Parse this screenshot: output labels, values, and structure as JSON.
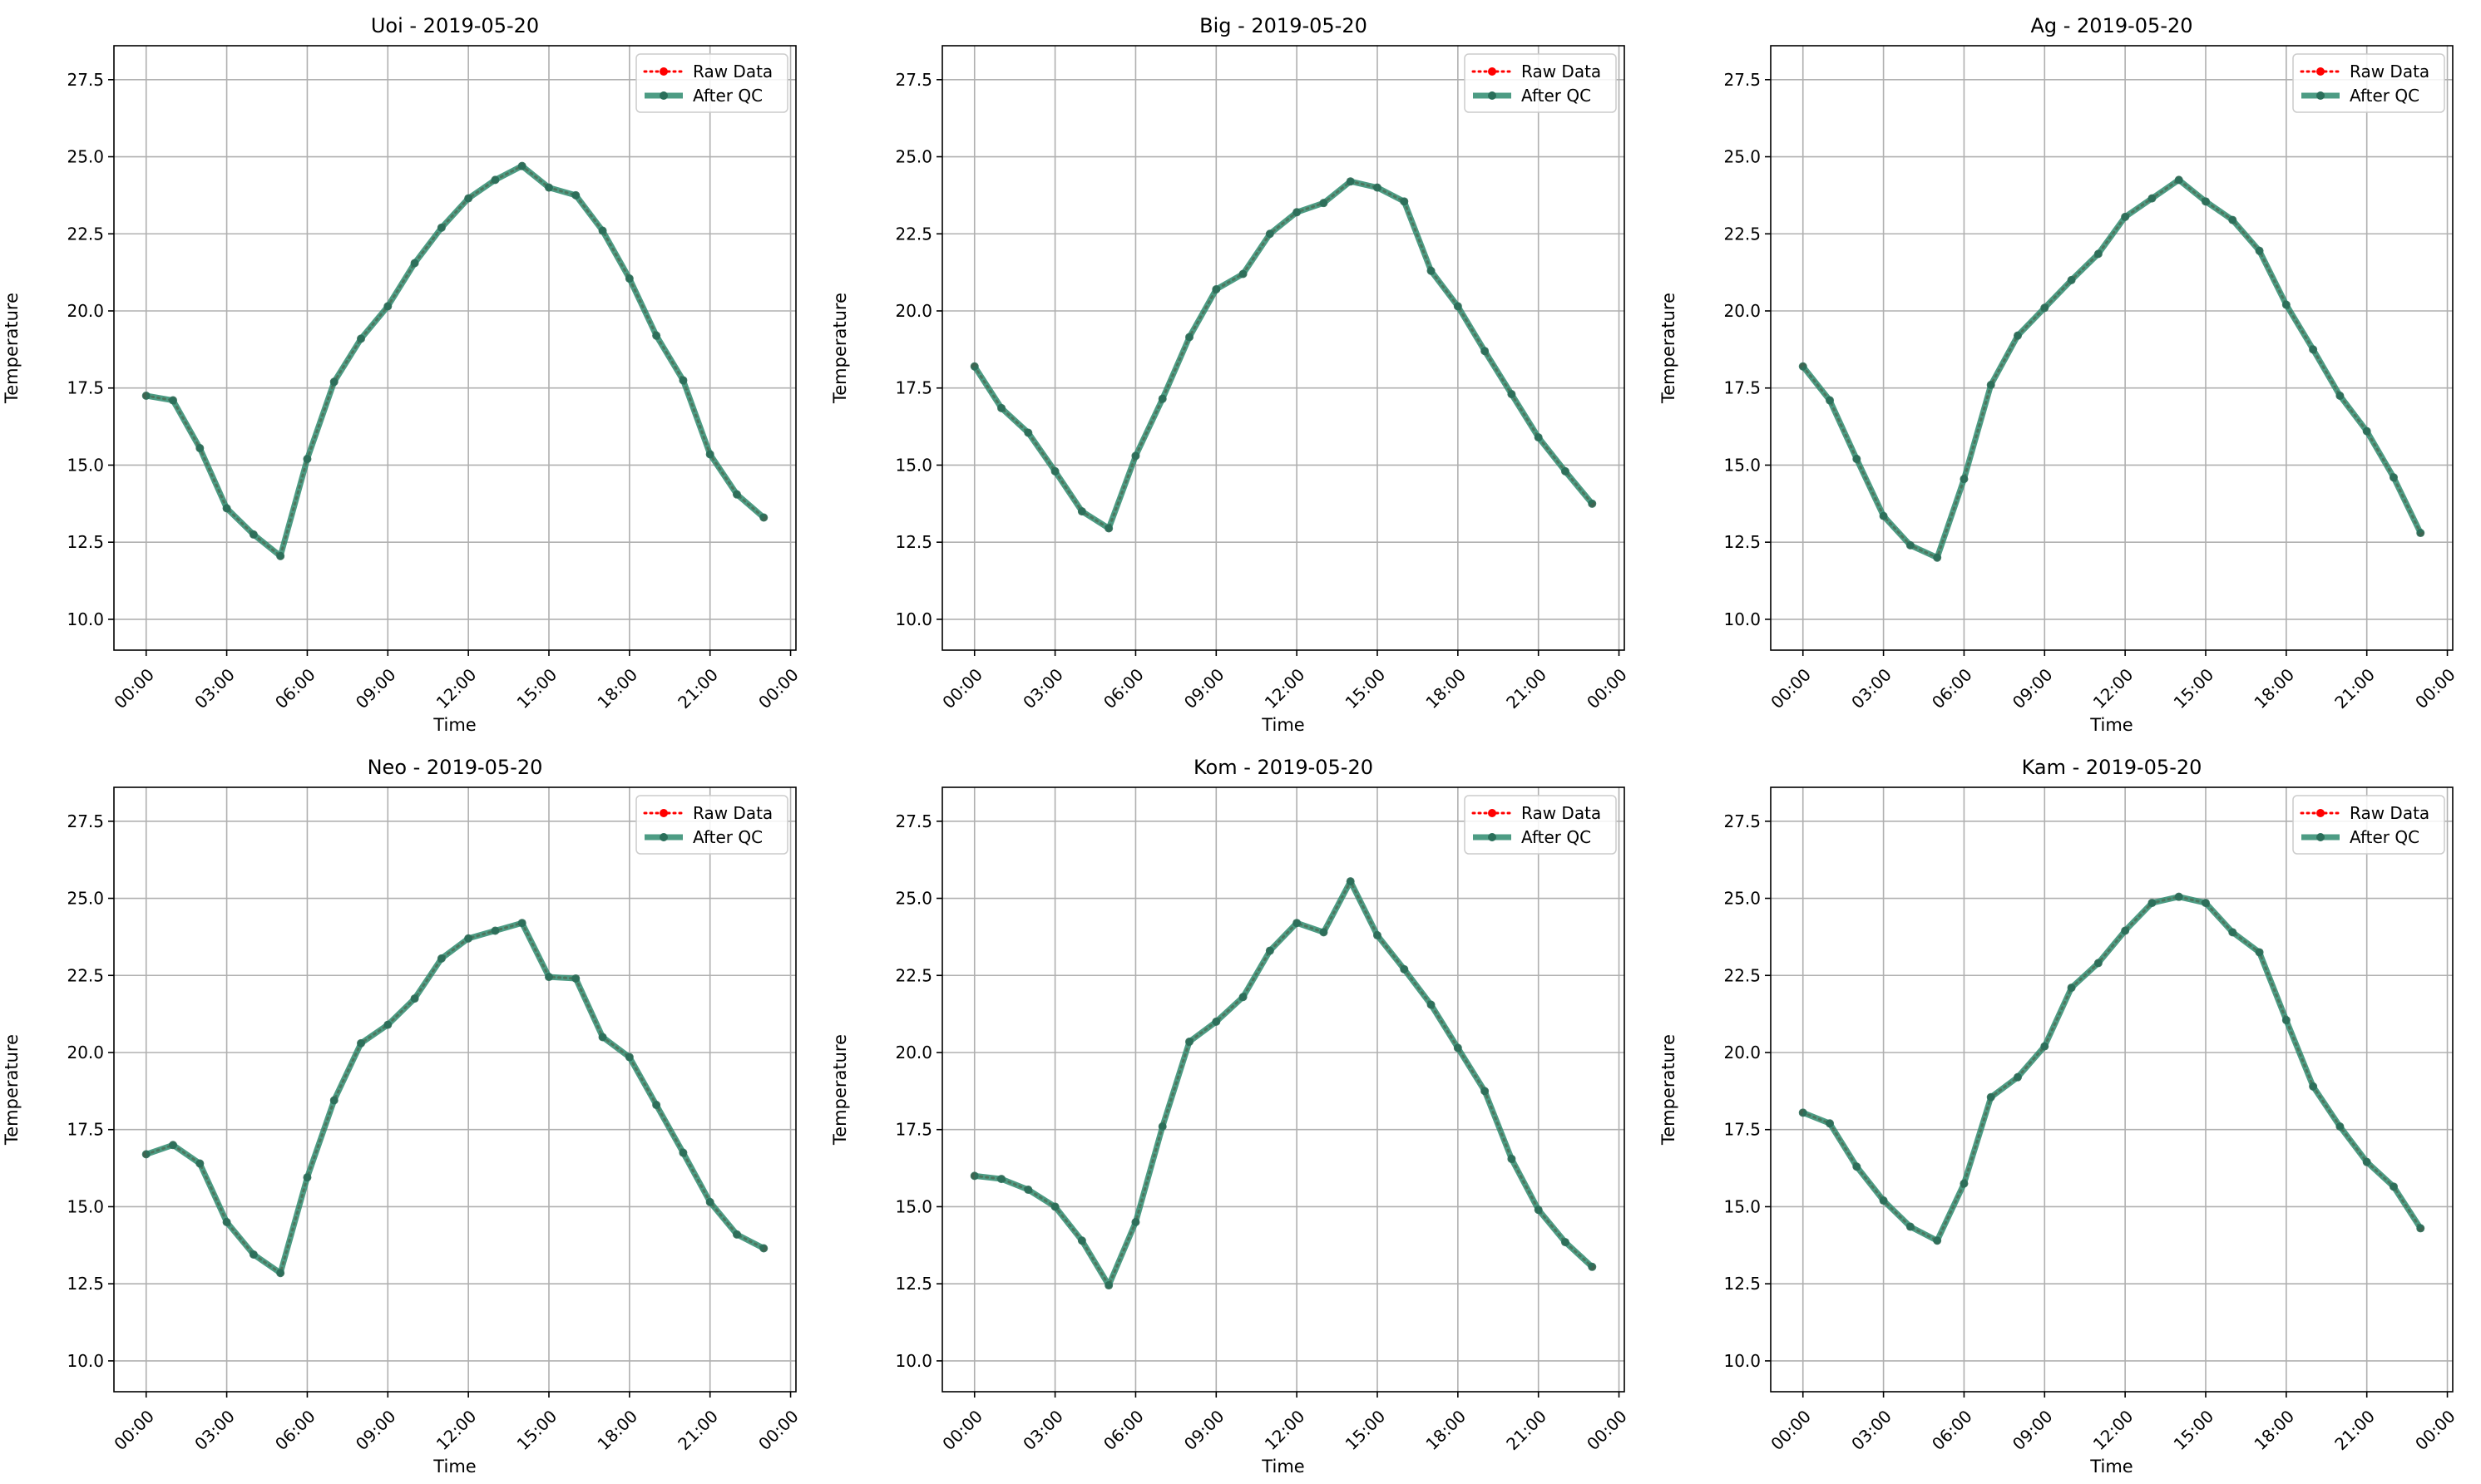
{
  "chart_data": [
    {
      "type": "line",
      "title": "Uoi - 2019-05-20",
      "xlabel": "Time",
      "ylabel": "Temperature",
      "x": [
        "00:00",
        "01:00",
        "02:00",
        "03:00",
        "04:00",
        "05:00",
        "06:00",
        "07:00",
        "08:00",
        "09:00",
        "10:00",
        "11:00",
        "12:00",
        "13:00",
        "14:00",
        "15:00",
        "16:00",
        "17:00",
        "18:00",
        "19:00",
        "20:00",
        "21:00",
        "22:00",
        "23:00"
      ],
      "xticks": [
        "00:00",
        "03:00",
        "06:00",
        "09:00",
        "12:00",
        "15:00",
        "18:00",
        "21:00",
        "00:00"
      ],
      "xlim_hours": [
        -1.2,
        24.2
      ],
      "yticks": [
        "10.0",
        "12.5",
        "15.0",
        "17.5",
        "20.0",
        "22.5",
        "25.0",
        "27.5"
      ],
      "ylim": [
        9.0,
        28.6
      ],
      "grid": true,
      "legend_position": "top-right",
      "series": [
        {
          "name": "Raw Data",
          "color": "#ff0000",
          "style": "dotted",
          "values": [
            17.25,
            17.1,
            15.55,
            13.6,
            12.75,
            12.05,
            15.2,
            17.7,
            19.1,
            20.15,
            21.55,
            22.7,
            23.65,
            24.25,
            24.7,
            24.0,
            23.75,
            22.6,
            21.05,
            19.2,
            17.75,
            15.35,
            14.05,
            13.3
          ]
        },
        {
          "name": "After QC",
          "color": "#2e8b6e",
          "style": "solid",
          "values": [
            17.25,
            17.1,
            15.55,
            13.6,
            12.75,
            12.05,
            15.2,
            17.7,
            19.1,
            20.15,
            21.55,
            22.7,
            23.65,
            24.25,
            24.7,
            24.0,
            23.75,
            22.6,
            21.05,
            19.2,
            17.75,
            15.35,
            14.05,
            13.3
          ]
        }
      ]
    },
    {
      "type": "line",
      "title": "Big - 2019-05-20",
      "xlabel": "Time",
      "ylabel": "Temperature",
      "x": [
        "00:00",
        "01:00",
        "02:00",
        "03:00",
        "04:00",
        "05:00",
        "06:00",
        "07:00",
        "08:00",
        "09:00",
        "10:00",
        "11:00",
        "12:00",
        "13:00",
        "14:00",
        "15:00",
        "16:00",
        "17:00",
        "18:00",
        "19:00",
        "20:00",
        "21:00",
        "22:00",
        "23:00"
      ],
      "xticks": [
        "00:00",
        "03:00",
        "06:00",
        "09:00",
        "12:00",
        "15:00",
        "18:00",
        "21:00",
        "00:00"
      ],
      "xlim_hours": [
        -1.2,
        24.2
      ],
      "yticks": [
        "10.0",
        "12.5",
        "15.0",
        "17.5",
        "20.0",
        "22.5",
        "25.0",
        "27.5"
      ],
      "ylim": [
        9.0,
        28.6
      ],
      "grid": true,
      "legend_position": "top-right",
      "series": [
        {
          "name": "Raw Data",
          "color": "#ff0000",
          "style": "dotted",
          "values": [
            18.2,
            16.85,
            16.05,
            14.8,
            13.5,
            12.95,
            15.3,
            17.15,
            19.15,
            20.7,
            21.2,
            22.5,
            23.2,
            23.5,
            24.2,
            24.0,
            23.55,
            21.3,
            20.15,
            18.7,
            17.3,
            15.9,
            14.8,
            13.75
          ]
        },
        {
          "name": "After QC",
          "color": "#2e8b6e",
          "style": "solid",
          "values": [
            18.2,
            16.85,
            16.05,
            14.8,
            13.5,
            12.95,
            15.3,
            17.15,
            19.15,
            20.7,
            21.2,
            22.5,
            23.2,
            23.5,
            24.2,
            24.0,
            23.55,
            21.3,
            20.15,
            18.7,
            17.3,
            15.9,
            14.8,
            13.75
          ]
        }
      ]
    },
    {
      "type": "line",
      "title": "Ag - 2019-05-20",
      "xlabel": "Time",
      "ylabel": "Temperature",
      "x": [
        "00:00",
        "01:00",
        "02:00",
        "03:00",
        "04:00",
        "05:00",
        "06:00",
        "07:00",
        "08:00",
        "09:00",
        "10:00",
        "11:00",
        "12:00",
        "13:00",
        "14:00",
        "15:00",
        "16:00",
        "17:00",
        "18:00",
        "19:00",
        "20:00",
        "21:00",
        "22:00",
        "23:00"
      ],
      "xticks": [
        "00:00",
        "03:00",
        "06:00",
        "09:00",
        "12:00",
        "15:00",
        "18:00",
        "21:00",
        "00:00"
      ],
      "xlim_hours": [
        -1.2,
        24.2
      ],
      "yticks": [
        "10.0",
        "12.5",
        "15.0",
        "17.5",
        "20.0",
        "22.5",
        "25.0",
        "27.5"
      ],
      "ylim": [
        9.0,
        28.6
      ],
      "grid": true,
      "legend_position": "top-right",
      "series": [
        {
          "name": "Raw Data",
          "color": "#ff0000",
          "style": "dotted",
          "values": [
            18.2,
            17.1,
            15.2,
            13.35,
            12.4,
            12.0,
            14.55,
            17.6,
            19.2,
            20.1,
            21.0,
            21.85,
            23.05,
            23.65,
            24.25,
            23.55,
            22.95,
            21.95,
            20.2,
            18.75,
            17.25,
            16.1,
            14.6,
            12.8
          ]
        },
        {
          "name": "After QC",
          "color": "#2e8b6e",
          "style": "solid",
          "values": [
            18.2,
            17.1,
            15.2,
            13.35,
            12.4,
            12.0,
            14.55,
            17.6,
            19.2,
            20.1,
            21.0,
            21.85,
            23.05,
            23.65,
            24.25,
            23.55,
            22.95,
            21.95,
            20.2,
            18.75,
            17.25,
            16.1,
            14.6,
            12.8
          ]
        }
      ]
    },
    {
      "type": "line",
      "title": "Neo - 2019-05-20",
      "xlabel": "Time",
      "ylabel": "Temperature",
      "x": [
        "00:00",
        "01:00",
        "02:00",
        "03:00",
        "04:00",
        "05:00",
        "06:00",
        "07:00",
        "08:00",
        "09:00",
        "10:00",
        "11:00",
        "12:00",
        "13:00",
        "14:00",
        "15:00",
        "16:00",
        "17:00",
        "18:00",
        "19:00",
        "20:00",
        "21:00",
        "22:00",
        "23:00"
      ],
      "xticks": [
        "00:00",
        "03:00",
        "06:00",
        "09:00",
        "12:00",
        "15:00",
        "18:00",
        "21:00",
        "00:00"
      ],
      "xlim_hours": [
        -1.2,
        24.2
      ],
      "yticks": [
        "10.0",
        "12.5",
        "15.0",
        "17.5",
        "20.0",
        "22.5",
        "25.0",
        "27.5"
      ],
      "ylim": [
        9.0,
        28.6
      ],
      "grid": true,
      "legend_position": "top-right",
      "series": [
        {
          "name": "Raw Data",
          "color": "#ff0000",
          "style": "dotted",
          "values": [
            16.7,
            17.0,
            16.4,
            14.5,
            13.45,
            12.85,
            15.95,
            18.45,
            20.3,
            20.9,
            21.75,
            23.05,
            23.7,
            23.95,
            24.2,
            22.45,
            22.4,
            20.5,
            19.85,
            18.3,
            16.75,
            15.15,
            14.1,
            13.65
          ]
        },
        {
          "name": "After QC",
          "color": "#2e8b6e",
          "style": "solid",
          "values": [
            16.7,
            17.0,
            16.4,
            14.5,
            13.45,
            12.85,
            15.95,
            18.45,
            20.3,
            20.9,
            21.75,
            23.05,
            23.7,
            23.95,
            24.2,
            22.45,
            22.4,
            20.5,
            19.85,
            18.3,
            16.75,
            15.15,
            14.1,
            13.65
          ]
        }
      ]
    },
    {
      "type": "line",
      "title": "Kom - 2019-05-20",
      "xlabel": "Time",
      "ylabel": "Temperature",
      "x": [
        "00:00",
        "01:00",
        "02:00",
        "03:00",
        "04:00",
        "05:00",
        "06:00",
        "07:00",
        "08:00",
        "09:00",
        "10:00",
        "11:00",
        "12:00",
        "13:00",
        "14:00",
        "15:00",
        "16:00",
        "17:00",
        "18:00",
        "19:00",
        "20:00",
        "21:00",
        "22:00",
        "23:00"
      ],
      "xticks": [
        "00:00",
        "03:00",
        "06:00",
        "09:00",
        "12:00",
        "15:00",
        "18:00",
        "21:00",
        "00:00"
      ],
      "xlim_hours": [
        -1.2,
        24.2
      ],
      "yticks": [
        "10.0",
        "12.5",
        "15.0",
        "17.5",
        "20.0",
        "22.5",
        "25.0",
        "27.5"
      ],
      "ylim": [
        9.0,
        28.6
      ],
      "grid": true,
      "legend_position": "top-right",
      "series": [
        {
          "name": "Raw Data",
          "color": "#ff0000",
          "style": "dotted",
          "values": [
            16.0,
            15.9,
            15.55,
            15.0,
            13.9,
            12.45,
            14.5,
            17.6,
            20.35,
            21.0,
            21.8,
            23.3,
            24.2,
            23.9,
            25.55,
            23.8,
            22.7,
            21.55,
            20.15,
            18.75,
            16.55,
            14.9,
            13.85,
            13.05
          ]
        },
        {
          "name": "After QC",
          "color": "#2e8b6e",
          "style": "solid",
          "values": [
            16.0,
            15.9,
            15.55,
            15.0,
            13.9,
            12.45,
            14.5,
            17.6,
            20.35,
            21.0,
            21.8,
            23.3,
            24.2,
            23.9,
            25.55,
            23.8,
            22.7,
            21.55,
            20.15,
            18.75,
            16.55,
            14.9,
            13.85,
            13.05
          ]
        }
      ]
    },
    {
      "type": "line",
      "title": "Kam - 2019-05-20",
      "xlabel": "Time",
      "ylabel": "Temperature",
      "x": [
        "00:00",
        "01:00",
        "02:00",
        "03:00",
        "04:00",
        "05:00",
        "06:00",
        "07:00",
        "08:00",
        "09:00",
        "10:00",
        "11:00",
        "12:00",
        "13:00",
        "14:00",
        "15:00",
        "16:00",
        "17:00",
        "18:00",
        "19:00",
        "20:00",
        "21:00",
        "22:00",
        "23:00"
      ],
      "xticks": [
        "00:00",
        "03:00",
        "06:00",
        "09:00",
        "12:00",
        "15:00",
        "18:00",
        "21:00",
        "00:00"
      ],
      "xlim_hours": [
        -1.2,
        24.2
      ],
      "yticks": [
        "10.0",
        "12.5",
        "15.0",
        "17.5",
        "20.0",
        "22.5",
        "25.0",
        "27.5"
      ],
      "ylim": [
        9.0,
        28.6
      ],
      "grid": true,
      "legend_position": "top-right",
      "series": [
        {
          "name": "Raw Data",
          "color": "#ff0000",
          "style": "dotted",
          "values": [
            18.05,
            17.7,
            16.3,
            15.2,
            14.35,
            13.9,
            15.75,
            18.55,
            19.2,
            20.2,
            22.1,
            22.9,
            23.95,
            24.85,
            25.05,
            24.85,
            23.9,
            23.25,
            21.05,
            18.9,
            17.6,
            16.45,
            15.65,
            14.3
          ]
        },
        {
          "name": "After QC",
          "color": "#2e8b6e",
          "style": "solid",
          "values": [
            18.05,
            17.7,
            16.3,
            15.2,
            14.35,
            13.9,
            15.75,
            18.55,
            19.2,
            20.2,
            22.1,
            22.9,
            23.95,
            24.85,
            25.05,
            24.85,
            23.9,
            23.25,
            21.05,
            18.9,
            17.6,
            16.45,
            15.65,
            14.3
          ]
        }
      ]
    }
  ]
}
